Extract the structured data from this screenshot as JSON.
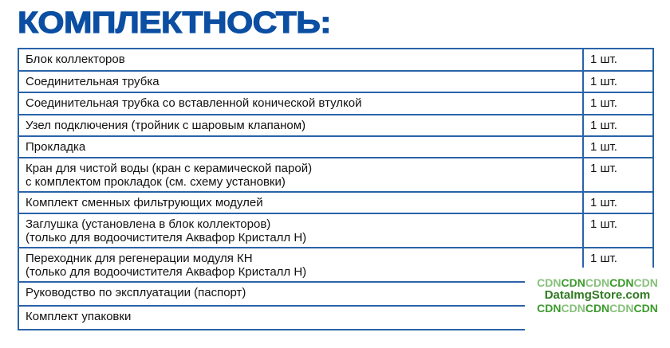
{
  "title": "КОМПЛЕКТНОСТЬ:",
  "rows": [
    {
      "item": "Блок коллекторов",
      "qty": "1 шт."
    },
    {
      "item": "Соединительная трубка",
      "qty": "1 шт."
    },
    {
      "item": "Соединительная трубка со вставленной конической втулкой",
      "qty": "1 шт."
    },
    {
      "item": "Узел подключения (тройник с шаровым клапаном)",
      "qty": "1 шт."
    },
    {
      "item": "Прокладка",
      "qty": "1 шт."
    },
    {
      "item": "Кран для чистой воды (кран с керамической парой)",
      "item2": "с комплектом прокладок (см. схему установки)",
      "qty": "1 шт."
    },
    {
      "item": "Комплект сменных фильтрующих модулей",
      "qty": "1 шт."
    },
    {
      "item": "Заглушка (установлена в блок коллекторов)",
      "item2": "(только для водоочистителя Аквафор Кристалл Н)",
      "qty": "1 шт."
    },
    {
      "item": "Переходник для регенерации модуля КН",
      "item2": "(только для водоочистителя Аквафор Кристалл Н)",
      "qty": "1 шт."
    },
    {
      "item": "Руководство по эксплуатации (паспорт)",
      "qty": ""
    },
    {
      "item": "Комплект упаковки",
      "qty": ""
    }
  ],
  "watermark": {
    "line1": [
      "CDN",
      "CDN",
      "CDN",
      "CDN",
      "CDN"
    ],
    "line2": "DataImgStore.com",
    "line3": [
      "CDN",
      "CDN",
      "CDN",
      "CDN",
      "CDN"
    ]
  },
  "colors": {
    "title": "#0b4ea2",
    "border": "#2a63a8",
    "watermark": "#2f7a22"
  }
}
